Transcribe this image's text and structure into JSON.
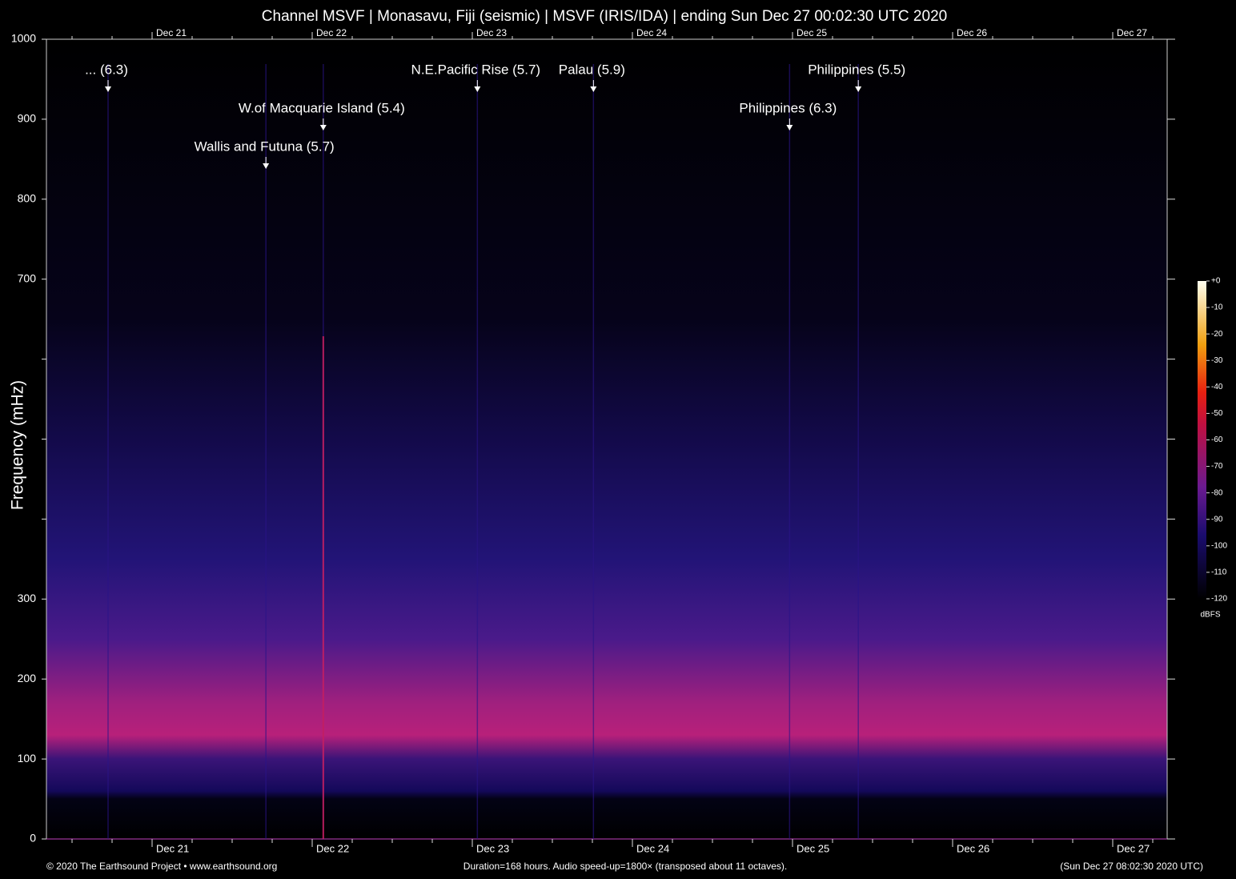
{
  "chart_data": {
    "type": "spectrogram",
    "title": "Channel MSVF | Monasavu, Fiji (seismic) | MSVF (IRIS/IDA) | ending Sun Dec 27 00:02:30 UTC 2020",
    "y_label": "Frequency (mHz)",
    "ylim": [
      0,
      1000
    ],
    "yticks": [
      0,
      100,
      200,
      300,
      {
        "value": 400,
        "label": null
      },
      {
        "value": 500,
        "label": null
      },
      {
        "value": 600,
        "label": null
      },
      700,
      800,
      900,
      1000
    ],
    "xlim": [
      0,
      168
    ],
    "xticks": [
      {
        "value": 15.84,
        "label": "Dec 21"
      },
      {
        "value": 39.84,
        "label": "Dec 22"
      },
      {
        "value": 63.84,
        "label": "Dec 23"
      },
      {
        "value": 87.84,
        "label": "Dec 24"
      },
      {
        "value": 111.84,
        "label": "Dec 25"
      },
      {
        "value": 135.84,
        "label": "Dec 26"
      },
      {
        "value": 159.84,
        "label": "Dec 27"
      }
    ],
    "events": [
      {
        "label": "... (6.3)",
        "x": 9.24
      },
      {
        "label": "W.of Macquarie Island (5.4)",
        "x": 41.5
      },
      {
        "label": "Wallis and Futuna (5.7)",
        "x": 32.9
      },
      {
        "label": "N.E.Pacific Rise (5.7)",
        "x": 64.6
      },
      {
        "label": "Palau (5.9)",
        "x": 82.0
      },
      {
        "label": "Philippines (6.3)",
        "x": 111.4
      },
      {
        "label": "Philippines (5.5)",
        "x": 121.7
      }
    ],
    "colorbar": {
      "lim": [
        -120,
        0
      ],
      "ticks": [
        {
          "value": 0,
          "label": "+0"
        },
        -10,
        -20,
        -30,
        -40,
        -50,
        -60,
        -70,
        -80,
        -90,
        -100,
        -110,
        -120
      ],
      "label": "dBFS"
    },
    "footer": {
      "left": "© 2020 The Earthsound Project • www.earthsound.org",
      "center": "Duration=168 hours. Audio speed-up=1800× (transposed about 11 octaves).",
      "right": "(Sun Dec 27 08:02:30 2020 UTC)"
    }
  }
}
